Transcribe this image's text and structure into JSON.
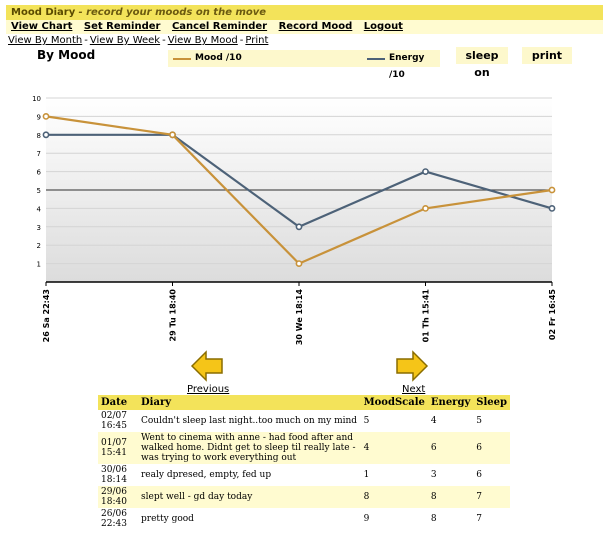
{
  "app": {
    "title": "Mood Diary",
    "tagline": "- record your moods on the move"
  },
  "menu": [
    "View Chart",
    "Set Reminder",
    "Cancel Reminder",
    "Record Mood",
    "Logout"
  ],
  "subnav": [
    "View By Month",
    "View By Week",
    "View By Mood",
    "Print"
  ],
  "chart_header": {
    "title": "By Mood",
    "sleep_toggle": "sleep on",
    "print": "print"
  },
  "colors": {
    "mood": "#c8923a",
    "energy": "#4d6278",
    "titlebar": "#f3e35a",
    "highlight": "#fffbd0"
  },
  "chart_data": {
    "type": "line",
    "categories": [
      "26 Sa 22:43",
      "29 Tu 18:40",
      "30 We 18:14",
      "01 Th 15:41",
      "02 Fr 16:45"
    ],
    "series": [
      {
        "name": "Mood /10",
        "values": [
          9,
          8,
          1,
          4,
          5
        ]
      },
      {
        "name": "Energy /10",
        "values": [
          8,
          8,
          3,
          6,
          4
        ]
      }
    ],
    "ylim": [
      0,
      10
    ],
    "yticks": [
      "1",
      "2",
      "3",
      "4",
      "5",
      "6",
      "7",
      "8",
      "9",
      "10"
    ],
    "reference_line": 5,
    "grid": true,
    "legend": "top"
  },
  "pager": {
    "previous": "Previous",
    "next": "Next"
  },
  "table": {
    "headers": [
      "Date",
      "Diary",
      "MoodScale",
      "Energy",
      "Sleep"
    ],
    "rows": [
      {
        "date": "02/07\n16:45",
        "diary": "Couldn't sleep last night..too much on my mind",
        "mood": "5",
        "energy": "4",
        "sleep": "5"
      },
      {
        "date": "01/07\n15:41",
        "diary": "Went to cinema with anne - had food after and walked home. Didnt get to sleep til really late - was trying to work everything out",
        "mood": "4",
        "energy": "6",
        "sleep": "6"
      },
      {
        "date": "30/06\n18:14",
        "diary": "realy dpresed, empty, fed up",
        "mood": "1",
        "energy": "3",
        "sleep": "6"
      },
      {
        "date": "29/06\n18:40",
        "diary": "slept well - gd day today",
        "mood": "8",
        "energy": "8",
        "sleep": "7"
      },
      {
        "date": "26/06\n22:43",
        "diary": "pretty good",
        "mood": "9",
        "energy": "8",
        "sleep": "7"
      }
    ]
  }
}
